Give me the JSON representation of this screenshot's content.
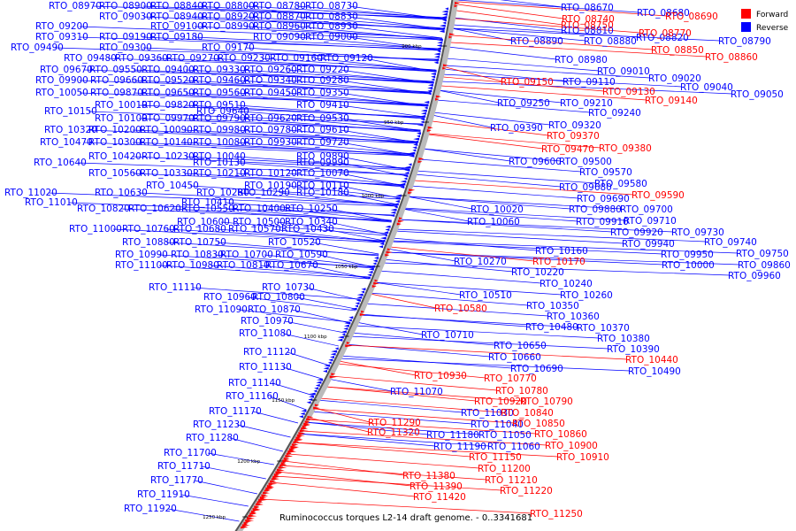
{
  "caption": "Ruminococcus torques L2-14 draft genome. - 0..3341681",
  "legend": [
    {
      "label": "Forward",
      "color": "#ff0000"
    },
    {
      "label": "Reverse",
      "color": "#0000ff"
    }
  ],
  "ticks": [
    "900 kbp",
    "950 kbp",
    "1000 kbp",
    "1050 kbp",
    "1100 kbp",
    "1150 kbp",
    "1200 kbp",
    "1250 kbp"
  ],
  "left_labels": [
    "RTO_08970",
    "RTO_08900",
    "RTO_08840",
    "RTO_08800",
    "RTO_08780",
    "RTO_08730",
    "RTO_09030",
    "RTO_08940",
    "RTO_08920",
    "RTO_08870",
    "RTO_08830",
    "RTO_09200",
    "RTO_09100",
    "RTO_08990",
    "RTO_08960",
    "RTO_08930",
    "RTO_09310",
    "RTO_09190",
    "RTO_09180",
    "RTO_09090",
    "RTO_09000",
    "RTO_09490",
    "RTO_09300",
    "RTO_09170",
    "RTO_09480",
    "RTO_09360",
    "RTO_09270",
    "RTO_09230",
    "RTO_09160",
    "RTO_09120",
    "RTO_09670",
    "RTO_09550",
    "RTO_09400",
    "RTO_09330",
    "RTO_09260",
    "RTO_09220",
    "RTO_09900",
    "RTO_09660",
    "RTO_09520",
    "RTO_09460",
    "RTO_09340",
    "RTO_09280",
    "RTO_10050",
    "RTO_09870",
    "RTO_09650",
    "RTO_09560",
    "RTO_09450",
    "RTO_09350",
    "RTO_10010",
    "RTO_09820",
    "RTO_09510",
    "RTO_09410",
    "RTO_10150",
    "RTO_09640",
    "RTO_10100",
    "RTO_09970",
    "RTO_09790",
    "RTO_09620",
    "RTO_09530",
    "RTO_10320",
    "RTO_10200",
    "RTO_10090",
    "RTO_09980",
    "RTO_09780",
    "RTO_09610",
    "RTO_10470",
    "RTO_10300",
    "RTO_10140",
    "RTO_10080",
    "RTO_09930",
    "RTO_09720",
    "RTO_10420",
    "RTO_10230",
    "RTO_10040",
    "RTO_09890",
    "RTO_10640",
    "RTO_10130",
    "RTO_09990",
    "RTO_10560",
    "RTO_10330",
    "RTO_10210",
    "RTO_10120",
    "RTO_10070",
    "RTO_10450",
    "RTO_10190",
    "RTO_10110",
    "RTO_11020",
    "RTO_10630",
    "RTO_10280",
    "RTO_10290",
    "RTO_10180",
    "RTO_11010",
    "RTO_10410",
    "RTO_10820",
    "RTO_10620",
    "RTO_10550",
    "RTO_10400",
    "RTO_10250",
    "RTO_10600",
    "RTO_10500",
    "RTO_10340",
    "RTO_11000",
    "RTO_10760",
    "RTO_10680",
    "RTO_10570",
    "RTO_10430",
    "RTO_10880",
    "RTO_10750",
    "RTO_10520",
    "RTO_10990",
    "RTO_10830",
    "RTO_10700",
    "RTO_10590",
    "RTO_11100",
    "RTO_10980",
    "RTO_10810",
    "RTO_10670",
    "RTO_11110",
    "RTO_10730",
    "RTO_10960",
    "RTO_10800",
    "RTO_11090",
    "RTO_10870",
    "RTO_10970",
    "RTO_11080",
    "RTO_11120",
    "RTO_11130",
    "RTO_11140",
    "RTO_11160",
    "RTO_11170",
    "RTO_11230",
    "RTO_11280",
    "RTO_11700",
    "RTO_11710",
    "RTO_11770",
    "RTO_11910",
    "RTO_11920"
  ],
  "right_blue_labels": [
    "RTO_08670",
    "RTO_08680",
    "RTO_08810",
    "RTO_08820",
    "RTO_08790",
    "RTO_08890",
    "RTO_08880",
    "RTO_08980",
    "RTO_09010",
    "RTO_09110",
    "RTO_09020",
    "RTO_09040",
    "RTO_09050",
    "RTO_09250",
    "RTO_09210",
    "RTO_09240",
    "RTO_09390",
    "RTO_09320",
    "RTO_09600",
    "RTO_09500",
    "RTO_09570",
    "RTO_09580",
    "RTO_09680",
    "RTO_09690",
    "RTO_10020",
    "RTO_09880",
    "RTO_09700",
    "RTO_09710",
    "RTO_10060",
    "RTO_09910",
    "RTO_09920",
    "RTO_09730",
    "RTO_09740",
    "RTO_09940",
    "RTO_09950",
    "RTO_09750",
    "RTO_10000",
    "RTO_09860",
    "RTO_09960",
    "RTO_10160",
    "RTO_10270",
    "RTO_10220",
    "RTO_10240",
    "RTO_10260",
    "RTO_10510",
    "RTO_10350",
    "RTO_10360",
    "RTO_10480",
    "RTO_10370",
    "RTO_10380",
    "RTO_10710",
    "RTO_10650",
    "RTO_10390",
    "RTO_10660",
    "RTO_10690",
    "RTO_10490",
    "RTO_11070",
    "RTO_11030",
    "RTO_11040",
    "RTO_11050",
    "RTO_11180",
    "RTO_11060",
    "RTO_11190"
  ],
  "right_red_labels": [
    "RTO_08740",
    "RTO_08690",
    "RTO_08750",
    "RTO_08770",
    "RTO_08850",
    "RTO_08860",
    "RTO_09150",
    "RTO_09130",
    "RTO_09140",
    "RTO_09370",
    "RTO_09470",
    "RTO_09380",
    "RTO_09590",
    "RTO_10170",
    "RTO_10580",
    "RTO_10440",
    "RTO_10930",
    "RTO_10770",
    "RTO_10780",
    "RTO_10920",
    "RTO_10790",
    "RTO_10840",
    "RTO_11290",
    "RTO_10850",
    "RTO_11320",
    "RTO_10860",
    "RTO_10900",
    "RTO_10910",
    "RTO_11150",
    "RTO_11200",
    "RTO_11210",
    "RTO_11220",
    "RTO_11380",
    "RTO_11390",
    "RTO_11420",
    "RTO_11250"
  ]
}
